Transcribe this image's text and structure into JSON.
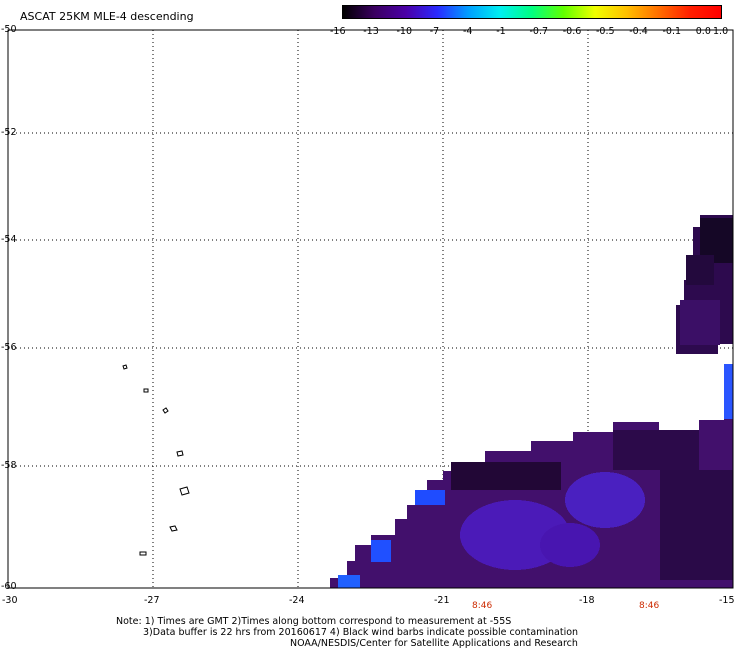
{
  "title": "ASCAT 25KM MLE-4 descending",
  "colorbar": {
    "labels": [
      "-16",
      "-13",
      "-10",
      "-7",
      "-4",
      "-1",
      "-0.7",
      "-0.6",
      "-0.5",
      "-0.4",
      "-0.1",
      "0.0",
      "1.0"
    ],
    "colors": [
      "#000000",
      "#3a0060",
      "#4b00a8",
      "#2a2aff",
      "#00a0ff",
      "#00f0f0",
      "#00ff80",
      "#60ff00",
      "#f0ff00",
      "#ffc000",
      "#ff7000",
      "#ff2000",
      "#ff0000"
    ]
  },
  "axes": {
    "y_labels": [
      "-50",
      "-52",
      "-54",
      "-56",
      "-58",
      "-60"
    ],
    "x_labels": [
      "-30",
      "-27",
      "-24",
      "-21",
      "-18",
      "-15"
    ],
    "lat_range": [
      -60,
      -50
    ],
    "lon_range": [
      -30,
      -15
    ],
    "grid": "dotted"
  },
  "time_labels": [
    "8:46",
    "8:46"
  ],
  "notes": [
    "Note: 1) Times are GMT 2)Times along bottom correspond to measurement at -55S",
    "3)Data buffer is 22 hrs from 20160617 4) Black wind barbs indicate possible contamination",
    "NOAA/NESDIS/Center for Satellite Applications and Research"
  ],
  "data_regions": [
    {
      "name": "northeast swath patch",
      "lon_range": [
        -16.8,
        -15
      ],
      "lat_range": [
        -56,
        -53.7
      ],
      "color": "#2a0a46"
    },
    {
      "name": "southern swath",
      "lon_range": [
        -23.2,
        -15
      ],
      "lat_range": [
        -60,
        -56.3
      ],
      "color": "#4a1070"
    }
  ]
}
